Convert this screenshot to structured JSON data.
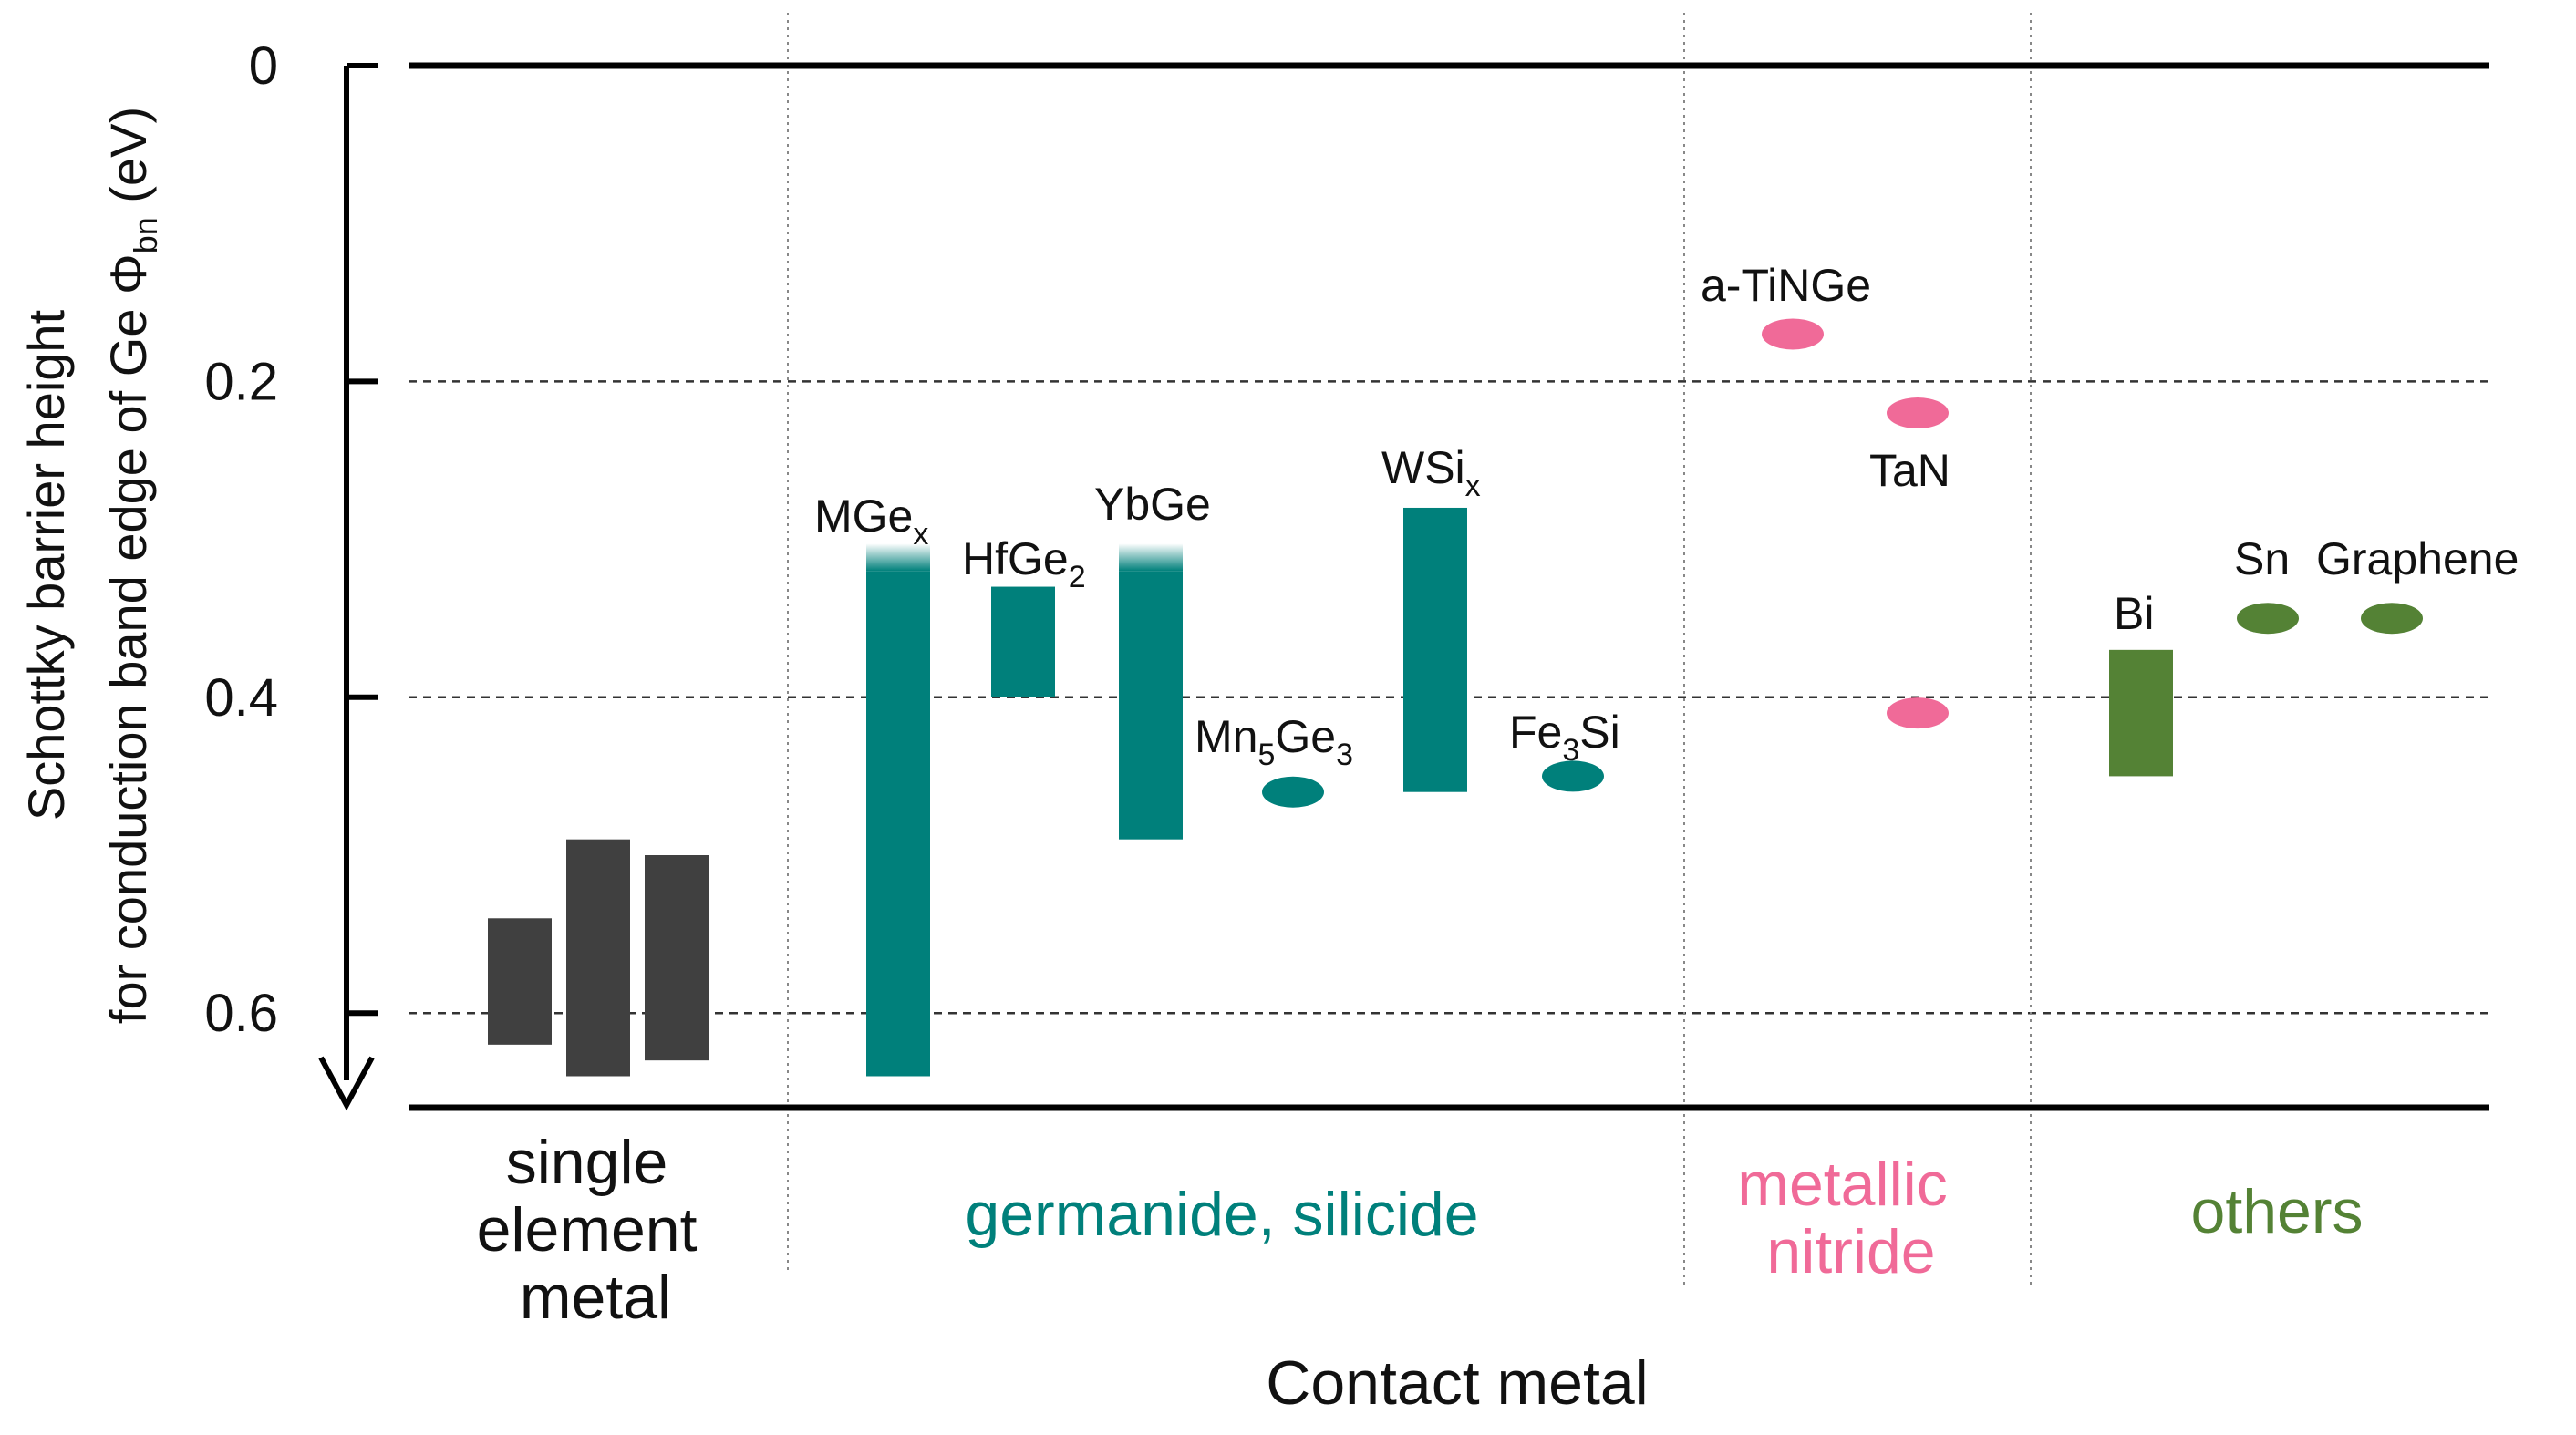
{
  "chart_data": {
    "type": "bar",
    "ylabel_line1": "Schottky barrier height",
    "ylabel_line2_main": "for conduction band edge of Ge Φ",
    "ylabel_line2_sub": "bn",
    "ylabel_line2_unit": " (eV)",
    "xlabel": "Contact metal",
    "ylim": [
      0,
      0.66
    ],
    "y_inverted": true,
    "yticks": [
      0,
      0.2,
      0.4,
      0.6
    ],
    "ytick_labels": [
      "0",
      "0.2",
      "0.4",
      "0.6"
    ],
    "grid_dashed_at": [
      0.2,
      0.4,
      0.6
    ],
    "colors": {
      "single": "#404040",
      "germanide": "#00807b",
      "nitride": "#f06a98",
      "others": "#548235"
    },
    "groups": [
      {
        "key": "single",
        "label_lines": [
          "single",
          "element",
          "metal"
        ]
      },
      {
        "key": "germanide",
        "label_lines": [
          "germanide, silicide"
        ]
      },
      {
        "key": "nitride",
        "label_lines": [
          "metallic",
          "nitride"
        ]
      },
      {
        "key": "others",
        "label_lines": [
          "others"
        ]
      }
    ],
    "items": [
      {
        "group": "single",
        "label": "",
        "shape": "bar",
        "y_low": 0.54,
        "y_high": 0.62
      },
      {
        "group": "single",
        "label": "",
        "shape": "bar",
        "y_low": 0.49,
        "y_high": 0.64
      },
      {
        "group": "single",
        "label": "",
        "shape": "bar",
        "y_low": 0.5,
        "y_high": 0.63
      },
      {
        "group": "germanide",
        "label": "MGe",
        "sub": "x",
        "shape": "bar",
        "y_low": 0.32,
        "y_high": 0.64,
        "faded_top": true
      },
      {
        "group": "germanide",
        "label": "HfGe",
        "sub": "2",
        "shape": "bar",
        "y_low": 0.33,
        "y_high": 0.4
      },
      {
        "group": "germanide",
        "label": "YbGe",
        "shape": "bar",
        "y_low": 0.32,
        "y_high": 0.49,
        "faded_top": true
      },
      {
        "group": "germanide",
        "label": "Mn",
        "sub": "5",
        "label2": "Ge",
        "sub2": "3",
        "shape": "point",
        "y": 0.46
      },
      {
        "group": "germanide",
        "label": "WSi",
        "sub": "x",
        "shape": "bar",
        "y_low": 0.28,
        "y_high": 0.46
      },
      {
        "group": "germanide",
        "label": "Fe",
        "sub": "3",
        "label2": "Si",
        "shape": "point",
        "y": 0.45
      },
      {
        "group": "nitride",
        "label": "a-TiNGe",
        "shape": "point",
        "y": 0.17
      },
      {
        "group": "nitride",
        "label": "TaN",
        "shape": "point",
        "y": 0.22
      },
      {
        "group": "nitride",
        "label": "",
        "shape": "point",
        "y": 0.41
      },
      {
        "group": "others",
        "label": "Bi",
        "shape": "bar",
        "y_low": 0.37,
        "y_high": 0.45
      },
      {
        "group": "others",
        "label": "Sn",
        "shape": "point",
        "y": 0.35
      },
      {
        "group": "others",
        "label": "Graphene",
        "shape": "point",
        "y": 0.35
      }
    ]
  }
}
